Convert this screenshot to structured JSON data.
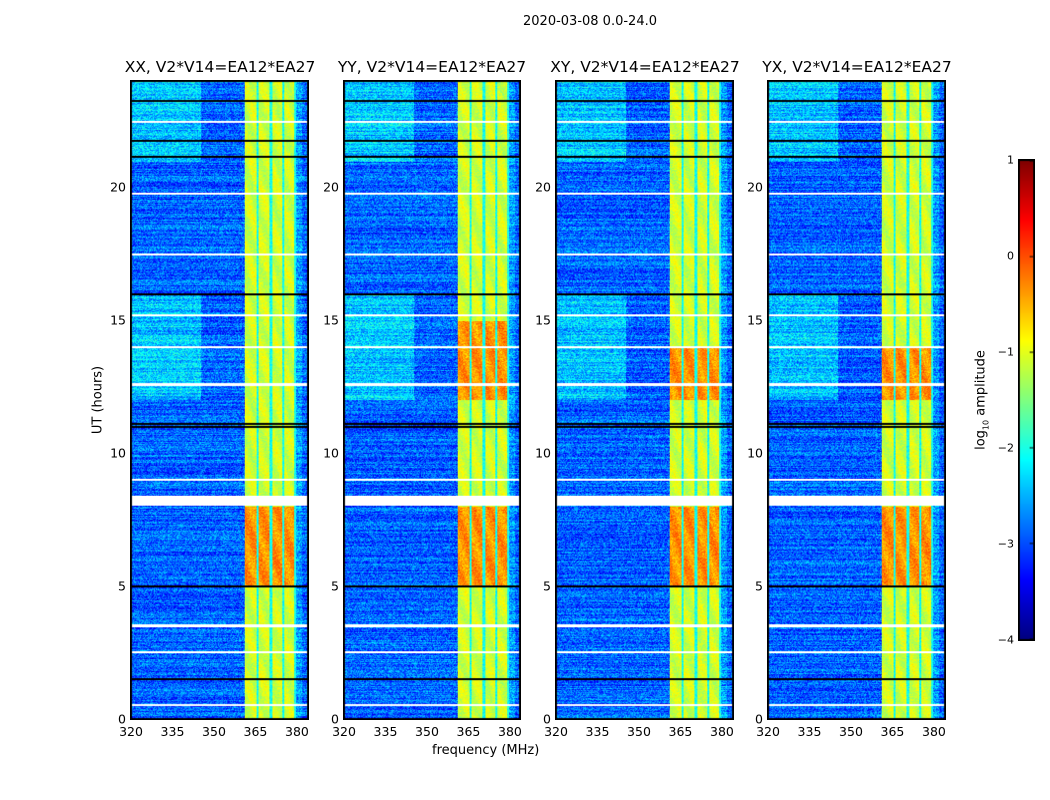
{
  "figure_title": "2020-03-08 0.0-24.0",
  "chart_data": {
    "type": "heatmap",
    "title": "2020-03-08 0.0-24.0",
    "xlabel": "frequency (MHz)",
    "ylabel": "UT (hours)",
    "xlim": [
      320,
      384
    ],
    "ylim": [
      0,
      24
    ],
    "xticks": [
      "320",
      "335",
      "350",
      "365",
      "380"
    ],
    "xtick_values": [
      320,
      335,
      350,
      365,
      380
    ],
    "yticks": [
      "0",
      "5",
      "10",
      "15",
      "20"
    ],
    "ytick_values": [
      0,
      5,
      10,
      15,
      20
    ],
    "panels": [
      {
        "title": "XX, V2*V14=EA12*EA27",
        "bright_band_mhz": [
          361,
          380
        ],
        "strong_hours": [
          [
            5,
            8
          ]
        ]
      },
      {
        "title": "YY, V2*V14=EA12*EA27",
        "bright_band_mhz": [
          361,
          380
        ],
        "strong_hours": [
          [
            5,
            8
          ],
          [
            12,
            15
          ]
        ]
      },
      {
        "title": "XY, V2*V14=EA12*EA27",
        "bright_band_mhz": [
          361,
          380
        ],
        "strong_hours": [
          [
            5,
            8
          ],
          [
            12,
            14
          ]
        ]
      },
      {
        "title": "YX, V2*V14=EA12*EA27",
        "bright_band_mhz": [
          361,
          380
        ],
        "strong_hours": [
          [
            5,
            8
          ],
          [
            12,
            14
          ]
        ]
      }
    ],
    "band_gaps_mhz": [
      365.7,
      370.6,
      375.2,
      379.6
    ],
    "flagged_white_hours": [
      0.5,
      2.5,
      3.5,
      8.2,
      8.3,
      9.0,
      12.6,
      14.0,
      15.2,
      17.5,
      19.8,
      22.5
    ],
    "flagged_black_hours": [
      1.5,
      5.0,
      11.0,
      11.1,
      16.0,
      21.2,
      21.8,
      23.3
    ],
    "colorbar": {
      "label": "log10 amplitude",
      "label_main": "log",
      "label_sub": "10",
      "label_rest": " amplitude",
      "colormap": "jet",
      "range": [
        -4,
        1
      ],
      "ticks": [
        "1",
        "0",
        "−1",
        "−2",
        "−3",
        "−4"
      ],
      "tick_values": [
        1,
        0,
        -1,
        -2,
        -3,
        -4
      ]
    }
  }
}
